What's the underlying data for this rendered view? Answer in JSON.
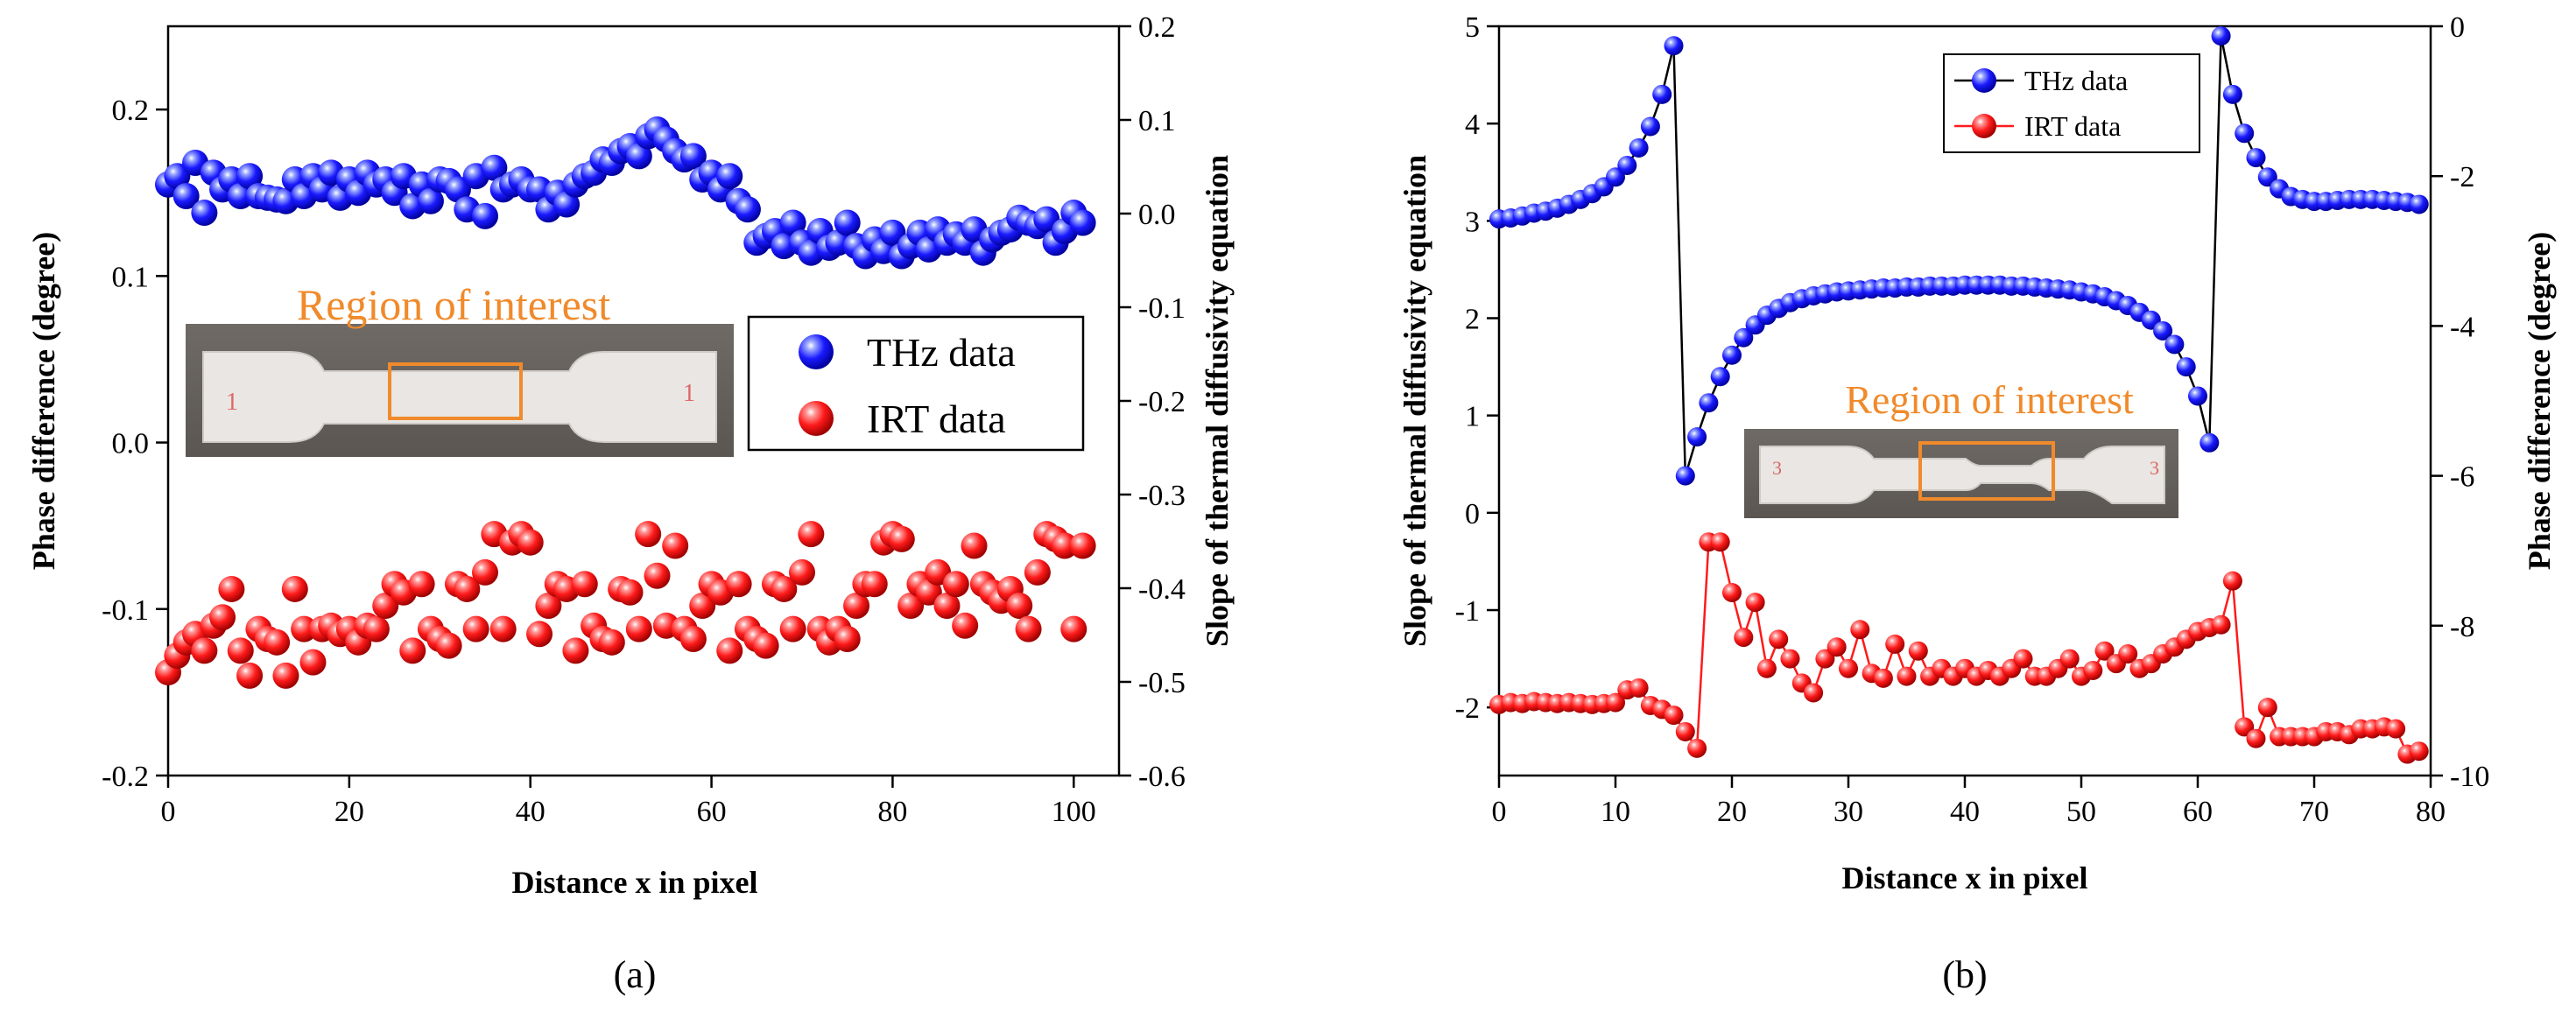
{
  "chart_data": [
    {
      "type": "scatter",
      "panel_label": "(a)",
      "xlabel": "Distance x in pixel",
      "ylabel_left": "Phase difference (degree)",
      "ylabel_right": "Slope of thermal diffusivity equation",
      "xlim": [
        0,
        105
      ],
      "ylim_left": [
        -0.2,
        0.25
      ],
      "ylim_right": [
        -0.6,
        0.2
      ],
      "x_ticks": [
        "0",
        "20",
        "40",
        "60",
        "80",
        "100"
      ],
      "y_left_ticks": [
        "-0.2",
        "-0.1",
        "0.0",
        "0.1",
        "0.2"
      ],
      "y_right_ticks": [
        "-0.6",
        "-0.5",
        "-0.4",
        "-0.3",
        "-0.2",
        "-0.1",
        "0.0",
        "0.1",
        "0.2"
      ],
      "inset_label": "Region of interest",
      "legend_position": "right-middle",
      "series": [
        {
          "name": "THz data",
          "color": "#1a1aff",
          "axis": "left",
          "x": [
            0,
            1,
            2,
            3,
            4,
            5,
            6,
            7,
            8,
            9,
            10,
            11,
            12,
            13,
            14,
            15,
            16,
            17,
            18,
            19,
            20,
            21,
            22,
            23,
            24,
            25,
            26,
            27,
            28,
            29,
            30,
            31,
            32,
            33,
            34,
            35,
            36,
            37,
            38,
            39,
            40,
            41,
            42,
            43,
            44,
            45,
            46,
            47,
            48,
            49,
            50,
            51,
            52,
            53,
            54,
            55,
            56,
            57,
            58,
            59,
            60,
            61,
            62,
            63,
            64,
            65,
            66,
            67,
            68,
            69,
            70,
            71,
            72,
            73,
            74,
            75,
            76,
            77,
            78,
            79,
            80,
            81,
            82,
            83,
            84,
            85,
            86,
            87,
            88,
            89,
            90,
            91,
            92,
            93,
            94,
            95,
            96,
            97,
            98,
            99,
            100,
            101
          ],
          "y": [
            0.155,
            0.16,
            0.148,
            0.168,
            0.138,
            0.162,
            0.152,
            0.158,
            0.148,
            0.16,
            0.148,
            0.147,
            0.146,
            0.145,
            0.158,
            0.148,
            0.16,
            0.152,
            0.162,
            0.147,
            0.158,
            0.15,
            0.162,
            0.155,
            0.158,
            0.15,
            0.16,
            0.142,
            0.155,
            0.145,
            0.158,
            0.157,
            0.152,
            0.14,
            0.16,
            0.136,
            0.165,
            0.152,
            0.155,
            0.158,
            0.152,
            0.152,
            0.14,
            0.15,
            0.143,
            0.155,
            0.16,
            0.162,
            0.17,
            0.168,
            0.175,
            0.178,
            0.172,
            0.184,
            0.188,
            0.182,
            0.175,
            0.17,
            0.172,
            0.158,
            0.162,
            0.152,
            0.16,
            0.145,
            0.14,
            0.12,
            0.124,
            0.127,
            0.118,
            0.132,
            0.12,
            0.114,
            0.127,
            0.117,
            0.12,
            0.132,
            0.118,
            0.112,
            0.122,
            0.115,
            0.126,
            0.112,
            0.118,
            0.126,
            0.116,
            0.128,
            0.12,
            0.125,
            0.12,
            0.128,
            0.114,
            0.122,
            0.126,
            0.128,
            0.135,
            0.132,
            0.13,
            0.134,
            0.12,
            0.127,
            0.138,
            0.132
          ]
        },
        {
          "name": "IRT data",
          "color": "#ff1a1a",
          "axis": "left",
          "x": [
            0,
            1,
            2,
            3,
            4,
            5,
            6,
            7,
            8,
            9,
            10,
            11,
            12,
            13,
            14,
            15,
            16,
            17,
            18,
            19,
            20,
            21,
            22,
            23,
            24,
            25,
            26,
            27,
            28,
            29,
            30,
            31,
            32,
            33,
            34,
            35,
            36,
            37,
            38,
            39,
            40,
            41,
            42,
            43,
            44,
            45,
            46,
            47,
            48,
            49,
            50,
            51,
            52,
            53,
            54,
            55,
            56,
            57,
            58,
            59,
            60,
            61,
            62,
            63,
            64,
            65,
            66,
            67,
            68,
            69,
            70,
            71,
            72,
            73,
            74,
            75,
            76,
            77,
            78,
            79,
            80,
            81,
            82,
            83,
            84,
            85,
            86,
            87,
            88,
            89,
            90,
            91,
            92,
            93,
            94,
            95,
            96,
            97,
            98,
            99,
            100,
            101
          ],
          "y": [
            -0.138,
            -0.128,
            -0.12,
            -0.115,
            -0.125,
            -0.11,
            -0.105,
            -0.088,
            -0.125,
            -0.14,
            -0.112,
            -0.118,
            -0.12,
            -0.14,
            -0.088,
            -0.112,
            -0.132,
            -0.112,
            -0.11,
            -0.115,
            -0.112,
            -0.12,
            -0.11,
            -0.112,
            -0.098,
            -0.085,
            -0.09,
            -0.125,
            -0.085,
            -0.112,
            -0.118,
            -0.122,
            -0.085,
            -0.088,
            -0.112,
            -0.078,
            -0.055,
            -0.112,
            -0.06,
            -0.055,
            -0.06,
            -0.115,
            -0.098,
            -0.085,
            -0.088,
            -0.125,
            -0.085,
            -0.11,
            -0.118,
            -0.12,
            -0.088,
            -0.09,
            -0.112,
            -0.055,
            -0.08,
            -0.11,
            -0.062,
            -0.112,
            -0.118,
            -0.098,
            -0.085,
            -0.09,
            -0.125,
            -0.085,
            -0.112,
            -0.118,
            -0.122,
            -0.085,
            -0.088,
            -0.112,
            -0.078,
            -0.055,
            -0.112,
            -0.12,
            -0.112,
            -0.118,
            -0.098,
            -0.085,
            -0.085,
            -0.06,
            -0.055,
            -0.058,
            -0.098,
            -0.085,
            -0.09,
            -0.078,
            -0.098,
            -0.085,
            -0.11,
            -0.062,
            -0.085,
            -0.09,
            -0.095,
            -0.088,
            -0.098,
            -0.112,
            -0.078,
            -0.055,
            -0.058,
            -0.062,
            -0.112,
            -0.062
          ]
        }
      ]
    },
    {
      "type": "line",
      "panel_label": "(b)",
      "xlabel": "Distance x in pixel",
      "ylabel_left": "Slope of thermal diffusivity equation",
      "ylabel_right": "Phase difference (degree)",
      "xlim": [
        0,
        80
      ],
      "ylim_left": [
        -2.7,
        5
      ],
      "ylim_right": [
        -10,
        0
      ],
      "x_ticks": [
        "0",
        "10",
        "20",
        "30",
        "40",
        "50",
        "60",
        "70",
        "80"
      ],
      "y_left_ticks": [
        "-2",
        "-1",
        "0",
        "1",
        "2",
        "3",
        "4",
        "5"
      ],
      "y_right_ticks": [
        "-10",
        "-8",
        "-6",
        "-4",
        "-2",
        "0"
      ],
      "inset_label": "Region of interest",
      "legend_position": "top-right",
      "series": [
        {
          "name": "THz data",
          "color": "#1a1aff",
          "line_color": "#000000",
          "axis": "left",
          "x": [
            0,
            1,
            2,
            3,
            4,
            5,
            6,
            7,
            8,
            9,
            10,
            11,
            12,
            13,
            14,
            15,
            16,
            17,
            18,
            19,
            20,
            21,
            22,
            23,
            24,
            25,
            26,
            27,
            28,
            29,
            30,
            31,
            32,
            33,
            34,
            35,
            36,
            37,
            38,
            39,
            40,
            41,
            42,
            43,
            44,
            45,
            46,
            47,
            48,
            49,
            50,
            51,
            52,
            53,
            54,
            55,
            56,
            57,
            58,
            59,
            60,
            61,
            62,
            63,
            64,
            65,
            66,
            67,
            68,
            69,
            70,
            71,
            72,
            73,
            74,
            75,
            76,
            77,
            78,
            79
          ],
          "y": [
            3.02,
            3.03,
            3.05,
            3.08,
            3.1,
            3.13,
            3.17,
            3.22,
            3.28,
            3.35,
            3.45,
            3.57,
            3.75,
            3.97,
            4.3,
            4.8,
            0.38,
            0.78,
            1.13,
            1.4,
            1.62,
            1.8,
            1.93,
            2.03,
            2.1,
            2.16,
            2.2,
            2.23,
            2.25,
            2.27,
            2.28,
            2.29,
            2.3,
            2.31,
            2.31,
            2.32,
            2.32,
            2.33,
            2.33,
            2.33,
            2.34,
            2.34,
            2.34,
            2.34,
            2.33,
            2.33,
            2.32,
            2.31,
            2.3,
            2.29,
            2.27,
            2.25,
            2.22,
            2.18,
            2.13,
            2.06,
            1.98,
            1.87,
            1.73,
            1.5,
            1.2,
            0.72,
            4.9,
            4.3,
            3.9,
            3.65,
            3.45,
            3.33,
            3.25,
            3.22,
            3.2,
            3.2,
            3.21,
            3.22,
            3.22,
            3.22,
            3.21,
            3.2,
            3.19,
            3.17
          ]
        },
        {
          "name": "IRT data",
          "color": "#ff1a1a",
          "line_color": "#ff1a1a",
          "axis": "left",
          "x": [
            0,
            1,
            2,
            3,
            4,
            5,
            6,
            7,
            8,
            9,
            10,
            11,
            12,
            13,
            14,
            15,
            16,
            17,
            18,
            19,
            20,
            21,
            22,
            23,
            24,
            25,
            26,
            27,
            28,
            29,
            30,
            31,
            32,
            33,
            34,
            35,
            36,
            37,
            38,
            39,
            40,
            41,
            42,
            43,
            44,
            45,
            46,
            47,
            48,
            49,
            50,
            51,
            52,
            53,
            54,
            55,
            56,
            57,
            58,
            59,
            60,
            61,
            62,
            63,
            64,
            65,
            66,
            67,
            68,
            69,
            70,
            71,
            72,
            73,
            74,
            75,
            76,
            77,
            78,
            79
          ],
          "y": [
            -1.97,
            -1.95,
            -1.96,
            -1.94,
            -1.95,
            -1.96,
            -1.95,
            -1.96,
            -1.97,
            -1.96,
            -1.95,
            -1.82,
            -1.8,
            -1.98,
            -2.02,
            -2.08,
            -2.25,
            -2.42,
            -0.3,
            -0.3,
            -0.82,
            -1.28,
            -0.92,
            -1.6,
            -1.3,
            -1.5,
            -1.75,
            -1.85,
            -1.5,
            -1.38,
            -1.6,
            -1.2,
            -1.65,
            -1.7,
            -1.35,
            -1.68,
            -1.42,
            -1.68,
            -1.6,
            -1.68,
            -1.6,
            -1.68,
            -1.62,
            -1.68,
            -1.6,
            -1.5,
            -1.68,
            -1.68,
            -1.6,
            -1.5,
            -1.68,
            -1.62,
            -1.42,
            -1.55,
            -1.45,
            -1.6,
            -1.55,
            -1.45,
            -1.38,
            -1.3,
            -1.22,
            -1.18,
            -1.15,
            -0.7,
            -2.2,
            -2.32,
            -2.0,
            -2.3,
            -2.3,
            -2.3,
            -2.3,
            -2.25,
            -2.25,
            -2.28,
            -2.22,
            -2.22,
            -2.2,
            -2.22,
            -2.48,
            -2.45
          ]
        }
      ]
    }
  ]
}
